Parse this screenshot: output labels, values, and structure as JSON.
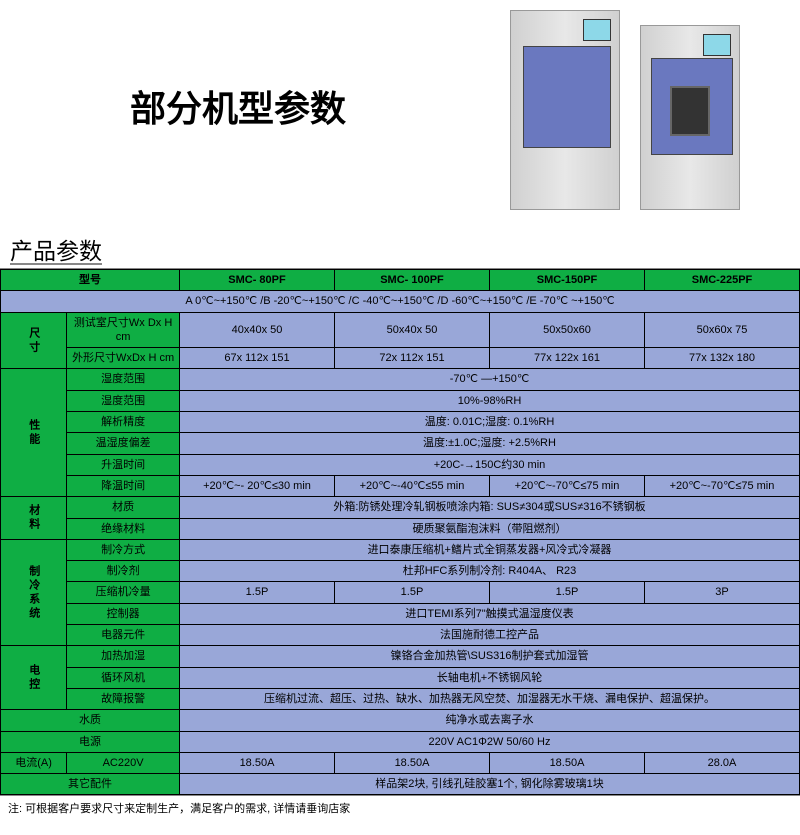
{
  "colors": {
    "header_bg": "#0fae44",
    "cell_bg": "#99a7d8",
    "text": "#000000",
    "border": "#000000"
  },
  "title": "部分机型参数",
  "section_title": "产品参数",
  "table": {
    "header": {
      "model_label": "型号",
      "models": [
        "SMC- 80PF",
        "SMC- 100PF",
        "SMC-150PF",
        "SMC-225PF"
      ]
    },
    "temp_range_row": "A 0℃~+150℃ /B -20℃~+150℃ /C -40℃~+150℃ /D -60℃~+150℃ /E -70℃ ~+150℃",
    "dimensions": {
      "group_label": "尺寸",
      "rows": [
        {
          "label": "测试室尺寸Wx Dx H cm",
          "values": [
            "40x40x 50",
            "50x40x 50",
            "50x50x60",
            "50x60x 75"
          ]
        },
        {
          "label": "外形尺寸WxDx H cm",
          "values": [
            "67x 112x 151",
            "72x 112x 151",
            "77x 122x 161",
            "77x 132x 180"
          ]
        }
      ]
    },
    "performance": {
      "group_label": "性能",
      "rows_span": [
        {
          "label": "湿度范围",
          "value": "-70℃ —+150℃"
        },
        {
          "label": "湿度范围",
          "value": "10%-98%RH"
        },
        {
          "label": "解析精度",
          "value": "温度: 0.01C;湿度: 0.1%RH"
        },
        {
          "label": "温湿度偏差",
          "value": "温度:±1.0C;湿度: +2.5%RH"
        },
        {
          "label": "升温时间",
          "value": "+20C-→150C约30 min"
        }
      ],
      "cooling_time": {
        "label": "降温时间",
        "values": [
          "+20℃~- 20℃≤30 min",
          "+20℃~-40℃≤55 min",
          "+20℃~-70℃≤75 min",
          "+20℃~-70℃≤75 min"
        ]
      }
    },
    "material": {
      "group_label": "材料",
      "rows": [
        {
          "label": "材质",
          "value": "外箱:防锈处理冷轧钢板喷涂内箱: SUS≠304或SUS≠316不锈钢板"
        },
        {
          "label": "绝缘材料",
          "value": "硬质聚氨酯泡沫料（带阻燃剂）"
        }
      ]
    },
    "cooling": {
      "group_label": "制冷系统",
      "rows_span": [
        {
          "label": "制冷方式",
          "value": "进口泰康压缩机+鳍片式全铜蒸发器+风冷式冷凝器"
        },
        {
          "label": "制冷剂",
          "value": "杜邦HFC系列制冷剂: R404A、 R23"
        }
      ],
      "compressor": {
        "label": "压缩机冷量",
        "values": [
          "1.5P",
          "1.5P",
          "1.5P",
          "3P"
        ]
      },
      "rows_span2": [
        {
          "label": "控制器",
          "value": "进口TEMI系列7\"触摸式温湿度仪表"
        },
        {
          "label": "电器元件",
          "value": "法国施耐德工控产品"
        }
      ]
    },
    "electric": {
      "group_label": "电控",
      "rows": [
        {
          "label": "加热加湿",
          "value": "镍铬合金加热管\\SUS316制护套式加湿管"
        },
        {
          "label": "循环风机",
          "value": "长轴电机+不锈钢风轮"
        },
        {
          "label": "故障报警",
          "value": "压缩机过流、超压、过热、缺水、加热器无风空焚、加湿器无水干烧、漏电保护、超温保护。"
        }
      ]
    },
    "water": {
      "label": "水质",
      "value": "纯净水或去离子水"
    },
    "power": {
      "label": "电源",
      "value": "220V AC1Φ2W 50/60 Hz"
    },
    "current": {
      "group_label": "电流(A)",
      "sub_label": "AC220V",
      "values": [
        "18.50A",
        "18.50A",
        "18.50A",
        "28.0A"
      ]
    },
    "accessories": {
      "label": "其它配件",
      "value": "样品架2块, 引线孔硅胶塞1个, 钢化除雾玻璃1块"
    }
  },
  "note": "注: 可根据客户要求尺寸来定制生产，满足客户的需求, 详情请垂询店家"
}
